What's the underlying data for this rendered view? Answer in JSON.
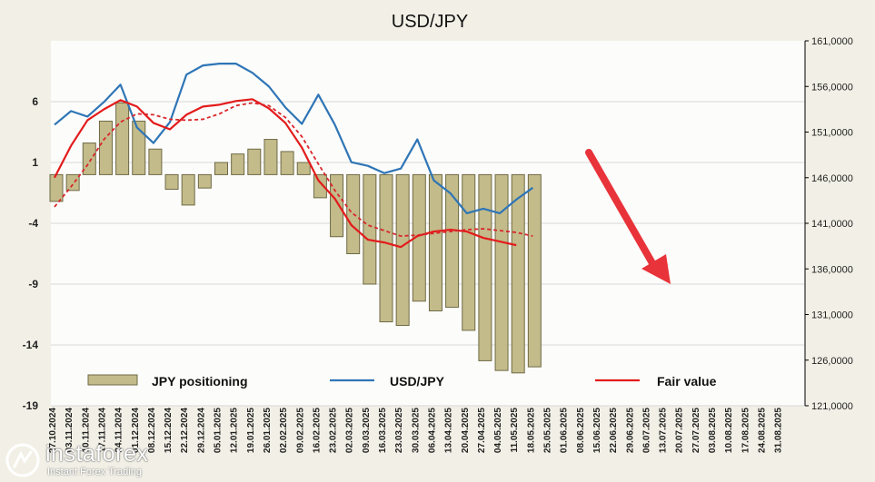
{
  "title": "USD/JPY",
  "colors": {
    "outer_bg": "#f2f0e6",
    "plot_bg": "#fcfcfa",
    "bar_fill": "#c3bb8a",
    "bar_edge": "#6f6a46",
    "usdjpy_line": "#2e75b6",
    "fair_value_line": "#e31b1b",
    "fair_value_avg_line": "#d9262b",
    "arrow": "#e8333a",
    "grid": "#d9d9d9"
  },
  "legend": {
    "positioning_label": "JPY positioning",
    "usdjpy_label": "USD/JPY",
    "fair_value_label": "Fair value"
  },
  "watermark": {
    "name": "instaforex",
    "tagline": "Instant Forex Trading"
  },
  "chart_data": {
    "type": "bar",
    "x_tick_labels": [
      "03.11.2024",
      "10.11.2024",
      "17.11.2024",
      "24.11.2024",
      "01.12.2024",
      "08.12.2024",
      "15.12.2024",
      "22.12.2024",
      "29.12.2024",
      "05.01.2025",
      "12.01.2025",
      "19.01.2025",
      "26.01.2025",
      "02.02.2025",
      "09.02.2025",
      "16.02.2025",
      "23.02.2025",
      "02.03.2025",
      "09.03.2025",
      "16.03.2025",
      "23.03.2025",
      "30.03.2025",
      "06.04.2025",
      "13.04.2025",
      "20.04.2025",
      "27.04.2025",
      "04.05.2025",
      "11.05.2025",
      "18.05.2025",
      "25.05.2025",
      "01.06.2025",
      "08.06.2025",
      "15.06.2025",
      "22.06.2025",
      "29.06.2025",
      "06.07.2025",
      "13.07.2025",
      "20.07.2025",
      "27.07.2025",
      "03.08.2025",
      "10.08.2025",
      "17.08.2025",
      "24.08.2025",
      "31.08.2025"
    ],
    "x_tick_labels_raw": [
      "27.10.2024",
      "03.11.2024",
      "10.11.2024",
      "17.11.2024",
      "24.11.2024",
      "01.12.2024",
      "08.12.2024",
      "15.12.2024",
      "22.12.2024",
      "29.12.2024",
      "05.01.2025",
      "12.01.2025",
      "19.01.2025",
      "26.01.2025",
      "02.02.2025",
      "09.02.2025",
      "16.02.2025",
      "23.02.2025",
      "02.03.2025",
      "09.03.2025",
      "16.03.2025",
      "23.03.2025",
      "30.03.2025",
      "06.04.2025",
      "13.04.2025",
      "20.04.2025",
      "27.04.2025",
      "04.05.2025",
      "11.05.2025",
      "18.05.2025",
      "25.05.2025",
      "01.06.2025",
      "08.06.2025",
      "15.06.2025",
      "22.06.2025",
      "29.06.2025",
      "06.07.2025",
      "13.07.2025",
      "20.07.2025",
      "27.07.2025",
      "03.08.2025",
      "10.08.2025",
      "17.08.2025",
      "24.08.2025",
      "31.08.2025"
    ],
    "y_left": {
      "min": -19,
      "max": 11,
      "ticks": [
        6,
        1,
        -4,
        -9,
        -14,
        -19
      ]
    },
    "y_right": {
      "min": 121000,
      "max": 161000,
      "ticks": [
        "161,0000",
        "156,0000",
        "151,0000",
        "146,0000",
        "141,0000",
        "136,0000",
        "131,0000",
        "126,0000",
        "121,0000"
      ]
    },
    "grid": true,
    "legend_position": "bottom",
    "series": [
      {
        "name": "JPY positioning",
        "type": "bar",
        "axis": "left",
        "values": [
          -2.2,
          -1.3,
          2.6,
          4.4,
          5.9,
          4.4,
          2.1,
          -1.2,
          -2.5,
          -1.1,
          1.0,
          1.7,
          2.1,
          2.9,
          1.9,
          1.0,
          -1.9,
          -5.1,
          -6.5,
          -9.0,
          -12.1,
          -12.4,
          -10.4,
          -11.2,
          -10.9,
          -12.8,
          -15.3,
          -16.1,
          -16.3,
          -15.8
        ],
        "x_start_index": 0
      },
      {
        "name": "USD/JPY",
        "type": "line",
        "axis": "right",
        "values": [
          151.8,
          153.3,
          152.7,
          154.3,
          156.2,
          151.5,
          149.8,
          152.1,
          157.3,
          158.3,
          158.5,
          158.5,
          157.5,
          156.0,
          153.7,
          151.9,
          155.1,
          151.8,
          147.7,
          147.3,
          146.5,
          147.0,
          150.2,
          145.7,
          144.3,
          142.1,
          142.6,
          142.1,
          143.6,
          144.9
        ]
      },
      {
        "name": "Fair value",
        "type": "line",
        "axis": "right",
        "values": [
          146.0,
          149.5,
          152.3,
          153.5,
          154.5,
          153.8,
          152.0,
          151.3,
          152.9,
          153.8,
          154.0,
          154.4,
          154.6,
          153.6,
          152.0,
          149.3,
          145.7,
          143.7,
          140.8,
          139.2,
          138.9,
          138.4,
          139.6,
          140.1,
          140.3,
          140.1,
          139.4,
          139.0,
          138.6
        ]
      },
      {
        "name": "Fair value (avg)",
        "type": "line",
        "axis": "right",
        "style": "dashed",
        "values": [
          142.8,
          145.0,
          147.4,
          150.2,
          152.1,
          153.0,
          152.9,
          152.4,
          152.3,
          152.4,
          153.0,
          153.9,
          154.2,
          153.9,
          152.6,
          150.5,
          147.5,
          144.6,
          142.2,
          140.8,
          140.2,
          139.6,
          139.7,
          139.9,
          140.1,
          140.3,
          140.4,
          140.2,
          140.0,
          139.6
        ]
      }
    ],
    "annotations": [
      "red arrow pointing down (projection)"
    ]
  }
}
